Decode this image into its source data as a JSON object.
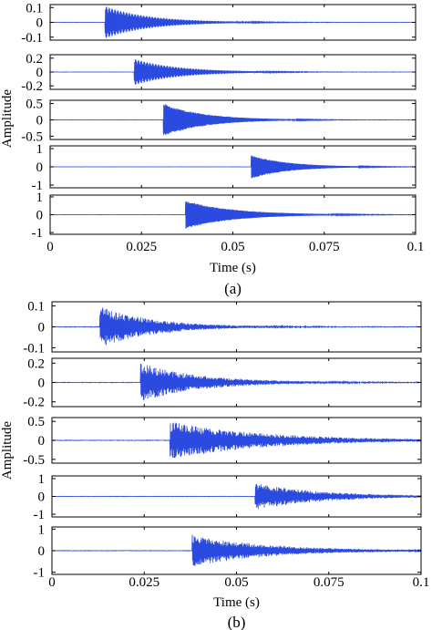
{
  "chart_data": [
    {
      "type": "line",
      "panel": "(a)",
      "caption": "(a)",
      "xlabel": "Time (s)",
      "ylabel": "Amplitude",
      "xlim": [
        0,
        0.1
      ],
      "xticks": [
        "0",
        "0.025",
        "0.05",
        "0.075",
        "0.1"
      ],
      "line_color": "#2b4be0",
      "subplots": [
        {
          "yticks": [
            "0.1",
            "0",
            "-0.1"
          ],
          "ylim": [
            -0.12,
            0.12
          ],
          "onset": 0.015,
          "peak": 0.11,
          "decay_tau": 0.012,
          "style": "tonal"
        },
        {
          "yticks": [
            "0.2",
            "0",
            "-0.2"
          ],
          "ylim": [
            -0.25,
            0.25
          ],
          "onset": 0.023,
          "peak": 0.19,
          "decay_tau": 0.012,
          "style": "tonal"
        },
        {
          "yticks": [
            "0.5",
            "0",
            "-0.5"
          ],
          "ylim": [
            -0.6,
            0.6
          ],
          "onset": 0.031,
          "peak": 0.5,
          "decay_tau": 0.011,
          "style": "dense"
        },
        {
          "yticks": [
            "1",
            "0",
            "-1"
          ],
          "ylim": [
            -1.15,
            1.15
          ],
          "onset": 0.055,
          "peak": 0.65,
          "decay_tau": 0.01,
          "style": "dense"
        },
        {
          "yticks": [
            "1",
            "0",
            "-1"
          ],
          "ylim": [
            -1.1,
            1.1
          ],
          "onset": 0.037,
          "peak": 0.8,
          "decay_tau": 0.013,
          "style": "dense"
        }
      ]
    },
    {
      "type": "line",
      "panel": "(b)",
      "caption": "(b)",
      "xlabel": "Time (s)",
      "ylabel": "Amplitude",
      "xlim": [
        0,
        0.1
      ],
      "xticks": [
        "0",
        "0.025",
        "0.05",
        "0.075",
        "0.1"
      ],
      "line_color": "#2b4be0",
      "subplots": [
        {
          "yticks": [
            "0.1",
            "0",
            "-0.1"
          ],
          "ylim": [
            -0.12,
            0.12
          ],
          "onset": 0.013,
          "peak": 0.1,
          "decay_tau": 0.014,
          "style": "noisy"
        },
        {
          "yticks": [
            "0.2",
            "0",
            "-0.2"
          ],
          "ylim": [
            -0.25,
            0.25
          ],
          "onset": 0.024,
          "peak": 0.2,
          "decay_tau": 0.016,
          "style": "noisy"
        },
        {
          "yticks": [
            "0.5",
            "0",
            "-0.5"
          ],
          "ylim": [
            -0.6,
            0.6
          ],
          "onset": 0.032,
          "peak": 0.5,
          "decay_tau": 0.025,
          "style": "noisy"
        },
        {
          "yticks": [
            "1",
            "0",
            "-1"
          ],
          "ylim": [
            -1.15,
            1.15
          ],
          "onset": 0.055,
          "peak": 0.75,
          "decay_tau": 0.018,
          "style": "noisy"
        },
        {
          "yticks": [
            "1",
            "0",
            "-1"
          ],
          "ylim": [
            -1.1,
            1.1
          ],
          "onset": 0.038,
          "peak": 0.75,
          "decay_tau": 0.02,
          "style": "noisy"
        }
      ]
    }
  ]
}
